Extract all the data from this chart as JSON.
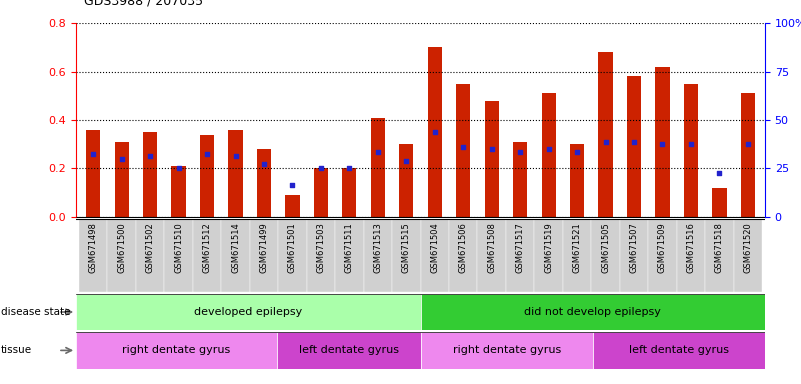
{
  "title": "GDS3988 / 207035",
  "samples": [
    "GSM671498",
    "GSM671500",
    "GSM671502",
    "GSM671510",
    "GSM671512",
    "GSM671514",
    "GSM671499",
    "GSM671501",
    "GSM671503",
    "GSM671511",
    "GSM671513",
    "GSM671515",
    "GSM671504",
    "GSM671506",
    "GSM671508",
    "GSM671517",
    "GSM671519",
    "GSM671521",
    "GSM671505",
    "GSM671507",
    "GSM671509",
    "GSM671516",
    "GSM671518",
    "GSM671520"
  ],
  "count": [
    0.36,
    0.31,
    0.35,
    0.21,
    0.34,
    0.36,
    0.28,
    0.09,
    0.2,
    0.2,
    0.41,
    0.3,
    0.7,
    0.55,
    0.48,
    0.31,
    0.51,
    0.3,
    0.68,
    0.58,
    0.62,
    0.55,
    0.12,
    0.51
  ],
  "percentile": [
    0.26,
    0.24,
    0.25,
    0.2,
    0.26,
    0.25,
    0.22,
    0.13,
    0.2,
    0.2,
    0.27,
    0.23,
    0.35,
    0.29,
    0.28,
    0.27,
    0.28,
    0.27,
    0.31,
    0.31,
    0.3,
    0.3,
    0.18,
    0.3
  ],
  "ylim_left": [
    0,
    0.8
  ],
  "ylim_right": [
    0,
    100
  ],
  "yticks_left": [
    0,
    0.2,
    0.4,
    0.6,
    0.8
  ],
  "yticks_right": [
    0,
    25,
    50,
    75,
    100
  ],
  "disease_state_groups": [
    {
      "label": "developed epilepsy",
      "start": 0,
      "end": 12,
      "color": "#aaffaa"
    },
    {
      "label": "did not develop epilepsy",
      "start": 12,
      "end": 24,
      "color": "#33cc33"
    }
  ],
  "tissue_groups": [
    {
      "label": "right dentate gyrus",
      "start": 0,
      "end": 7,
      "color": "#ee88ee"
    },
    {
      "label": "left dentate gyrus",
      "start": 7,
      "end": 12,
      "color": "#cc44cc"
    },
    {
      "label": "right dentate gyrus",
      "start": 12,
      "end": 18,
      "color": "#ee88ee"
    },
    {
      "label": "left dentate gyrus",
      "start": 18,
      "end": 24,
      "color": "#cc44cc"
    }
  ],
  "bar_color": "#cc2200",
  "dot_color": "#2222cc",
  "bar_width": 0.5,
  "label_row_bg": "#d0d0d0",
  "legend_count_color": "#cc2200",
  "legend_dot_color": "#2222cc"
}
